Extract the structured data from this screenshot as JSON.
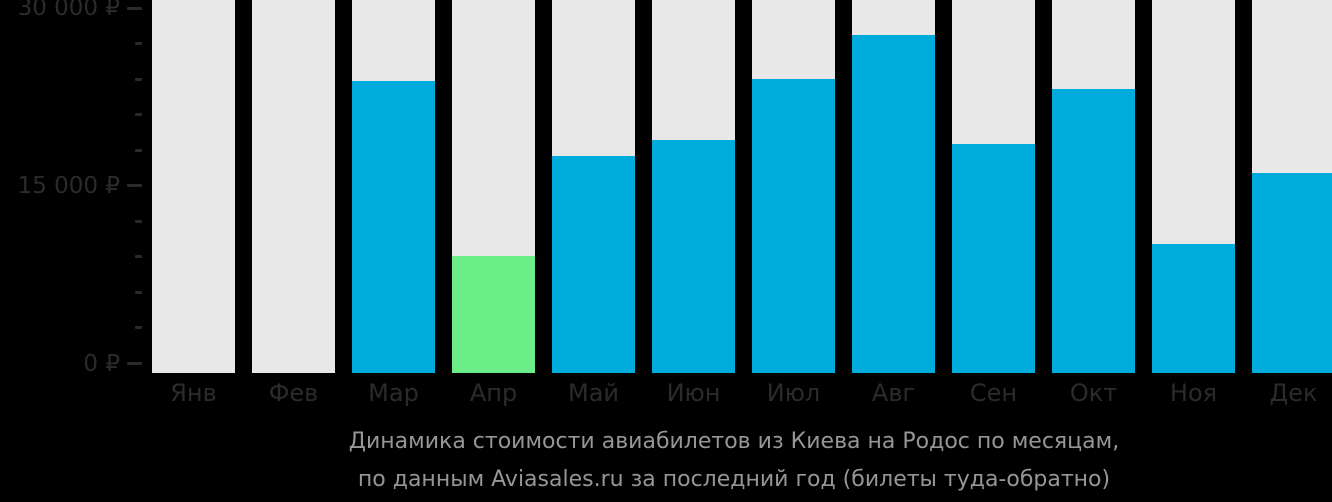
{
  "chart_data": {
    "type": "bar",
    "title": "Динамика стоимости авиабилетов из Киева на Родос по месяцам,",
    "subtitle": "по данным Aviasales.ru за последний год (билеты туда-обратно)",
    "categories": [
      "Янв",
      "Фев",
      "Мар",
      "Апр",
      "Май",
      "Июн",
      "Июл",
      "Авг",
      "Сен",
      "Окт",
      "Ноя",
      "Дек"
    ],
    "category_slugs": [
      "jan",
      "feb",
      "mar",
      "apr",
      "may",
      "jun",
      "jul",
      "aug",
      "sep",
      "oct",
      "nov",
      "dec"
    ],
    "values": [
      null,
      null,
      23800,
      9100,
      17500,
      18900,
      24000,
      27700,
      18500,
      23200,
      10100,
      16100
    ],
    "bar_roles": [
      "no-data",
      "no-data",
      "price",
      "min-price",
      "price",
      "price",
      "price",
      "price",
      "price",
      "price",
      "price",
      "price"
    ],
    "currency": "₽",
    "xlabel": "",
    "ylabel": "",
    "ylim": [
      0,
      30000
    ],
    "y_major_ticks": [
      0,
      15000,
      30000
    ],
    "y_major_tick_labels": [
      "0 ₽",
      "15 000 ₽",
      "30 000 ₽"
    ],
    "y_minor_tick_step": 3000,
    "grid": "off",
    "legend": "none",
    "colors": {
      "background": "#000000",
      "bar_track": "#e9e8e8",
      "bar_price": "#00acdc",
      "bar_min_price": "#6bee87",
      "axis_text": "#2b2b2b",
      "tick_mark": "#2b2b2b",
      "caption_text": "#969696"
    }
  }
}
